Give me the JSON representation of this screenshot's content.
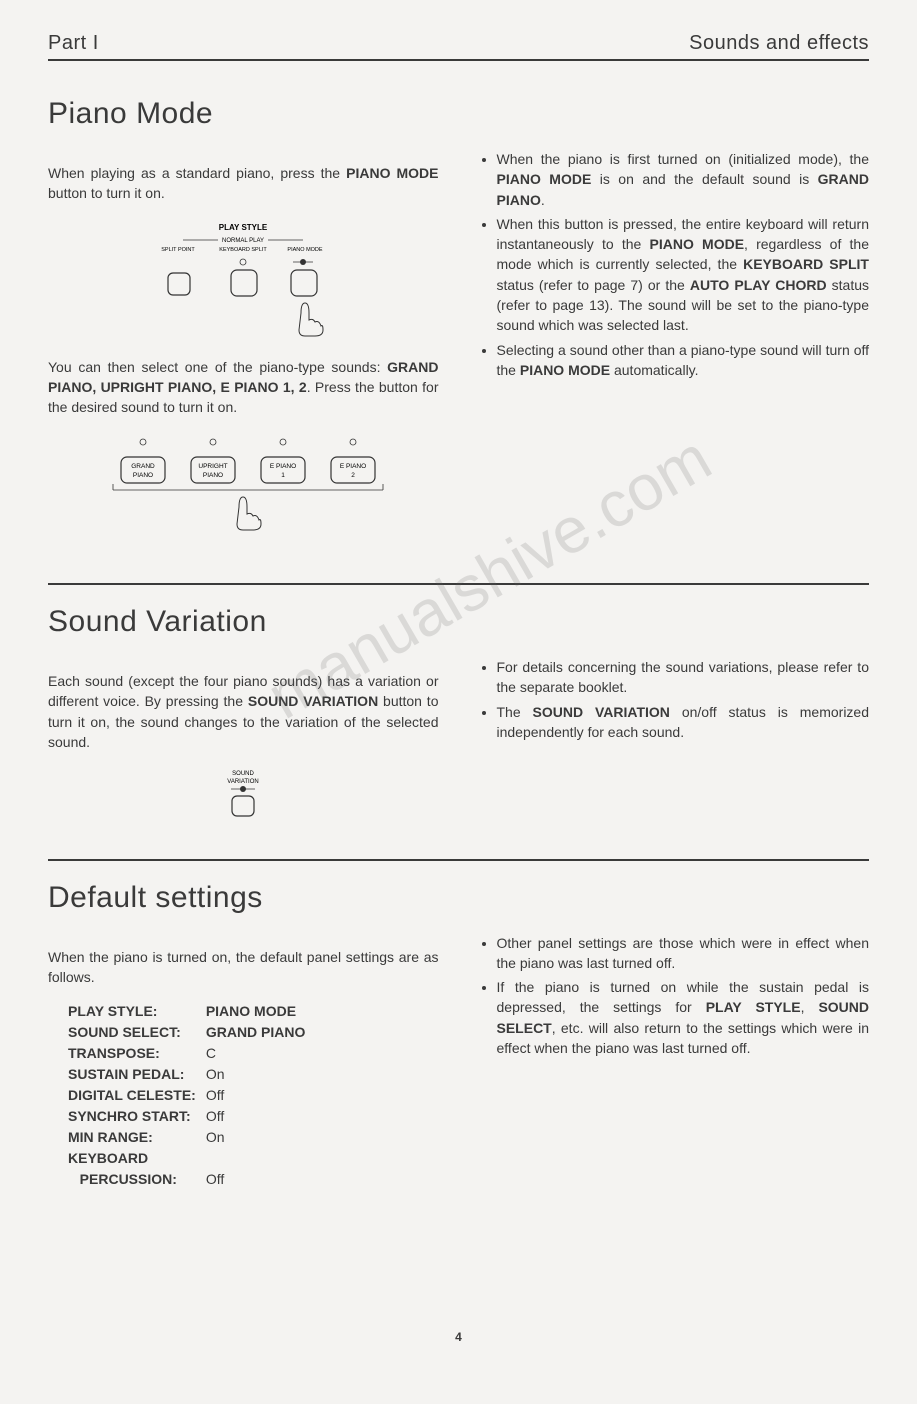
{
  "header": {
    "part": "Part I",
    "section": "Sounds and effects"
  },
  "pianoMode": {
    "title": "Piano Mode",
    "para1_pre": "When playing as a standard piano, press the ",
    "para1_bold": "PIANO MODE",
    "para1_post": " button to turn it on.",
    "diagram1": {
      "topLabel": "PLAY STYLE",
      "subLabel": "NORMAL PLAY",
      "leftLabel": "SPLIT POINT",
      "midLabel": "KEYBOARD SPLIT",
      "rightLabel": "PIANO MODE"
    },
    "para2_pre": "You can then select one of the piano-type sounds: ",
    "para2_bold": "GRAND PIANO, UPRIGHT PIANO, E PIANO 1, 2",
    "para2_post": ". Press the button for the desired sound to turn it on.",
    "diagram2": {
      "btn1": "GRAND PIANO",
      "btn2": "UPRIGHT PIANO",
      "btn3": "E PIANO 1",
      "btn4": "E PIANO 2"
    },
    "right": {
      "li1_a": "When the piano is first turned on (initialized mode), the ",
      "li1_b": "PIANO MODE",
      "li1_c": " is on and the default sound is ",
      "li1_d": "GRAND PIANO",
      "li1_e": ".",
      "li2_a": "When this button is pressed, the entire keyboard will return instantaneously to the ",
      "li2_b": "PIANO MODE",
      "li2_c": ", regardless of the mode which is currently selected, the ",
      "li2_d": "KEYBOARD SPLIT",
      "li2_e": " status (refer to page 7) or the ",
      "li2_f": "AUTO PLAY CHORD",
      "li2_g": " status (refer to page 13). The sound will be set to the piano-type sound which was selected last.",
      "li3_a": "Selecting a sound other than a piano-type sound will turn off the ",
      "li3_b": "PIANO MODE",
      "li3_c": " automatically."
    }
  },
  "soundVariation": {
    "title": "Sound Variation",
    "left_a": "Each sound (except the four piano sounds) has a variation or different voice. By pressing the ",
    "left_b": "SOUND VARIATION",
    "left_c": " button to turn it on, the sound changes to the variation of the selected sound.",
    "diagLabel": "SOUND VARIATION",
    "right": {
      "li1": "For details concerning the sound variations, please refer to the separate booklet.",
      "li2_a": "The ",
      "li2_b": "SOUND VARIATION",
      "li2_c": " on/off status is memorized independently for each sound."
    }
  },
  "defaultSettings": {
    "title": "Default settings",
    "intro": "When the piano is turned on, the default panel settings are as follows.",
    "rows": [
      {
        "label": "PLAY STYLE:",
        "value": "PIANO MODE",
        "bold": true
      },
      {
        "label": "SOUND SELECT:",
        "value": "GRAND PIANO",
        "bold": true
      },
      {
        "label": "TRANSPOSE:",
        "value": "C",
        "bold": false
      },
      {
        "label": "SUSTAIN PEDAL:",
        "value": "On",
        "bold": false
      },
      {
        "label": "DIGITAL CELESTE:",
        "value": "Off",
        "bold": false
      },
      {
        "label": "SYNCHRO START:",
        "value": "Off",
        "bold": false
      },
      {
        "label": "MIN RANGE:",
        "value": "On",
        "bold": false
      },
      {
        "label": "KEYBOARD",
        "value": "",
        "bold": false
      },
      {
        "label": "   PERCUSSION:",
        "value": "Off",
        "bold": false
      }
    ],
    "right": {
      "li1": "Other panel settings are those which were in effect when the piano was last turned off.",
      "li2_a": "If the piano is turned on while the sustain pedal is depressed, the settings for ",
      "li2_b": "PLAY STYLE",
      "li2_c": ", ",
      "li2_d": "SOUND SELECT",
      "li2_e": ", etc. will also return to the settings which were in effect when the piano was last turned off."
    }
  },
  "pageNumber": "4",
  "watermark": "manualshive.com"
}
